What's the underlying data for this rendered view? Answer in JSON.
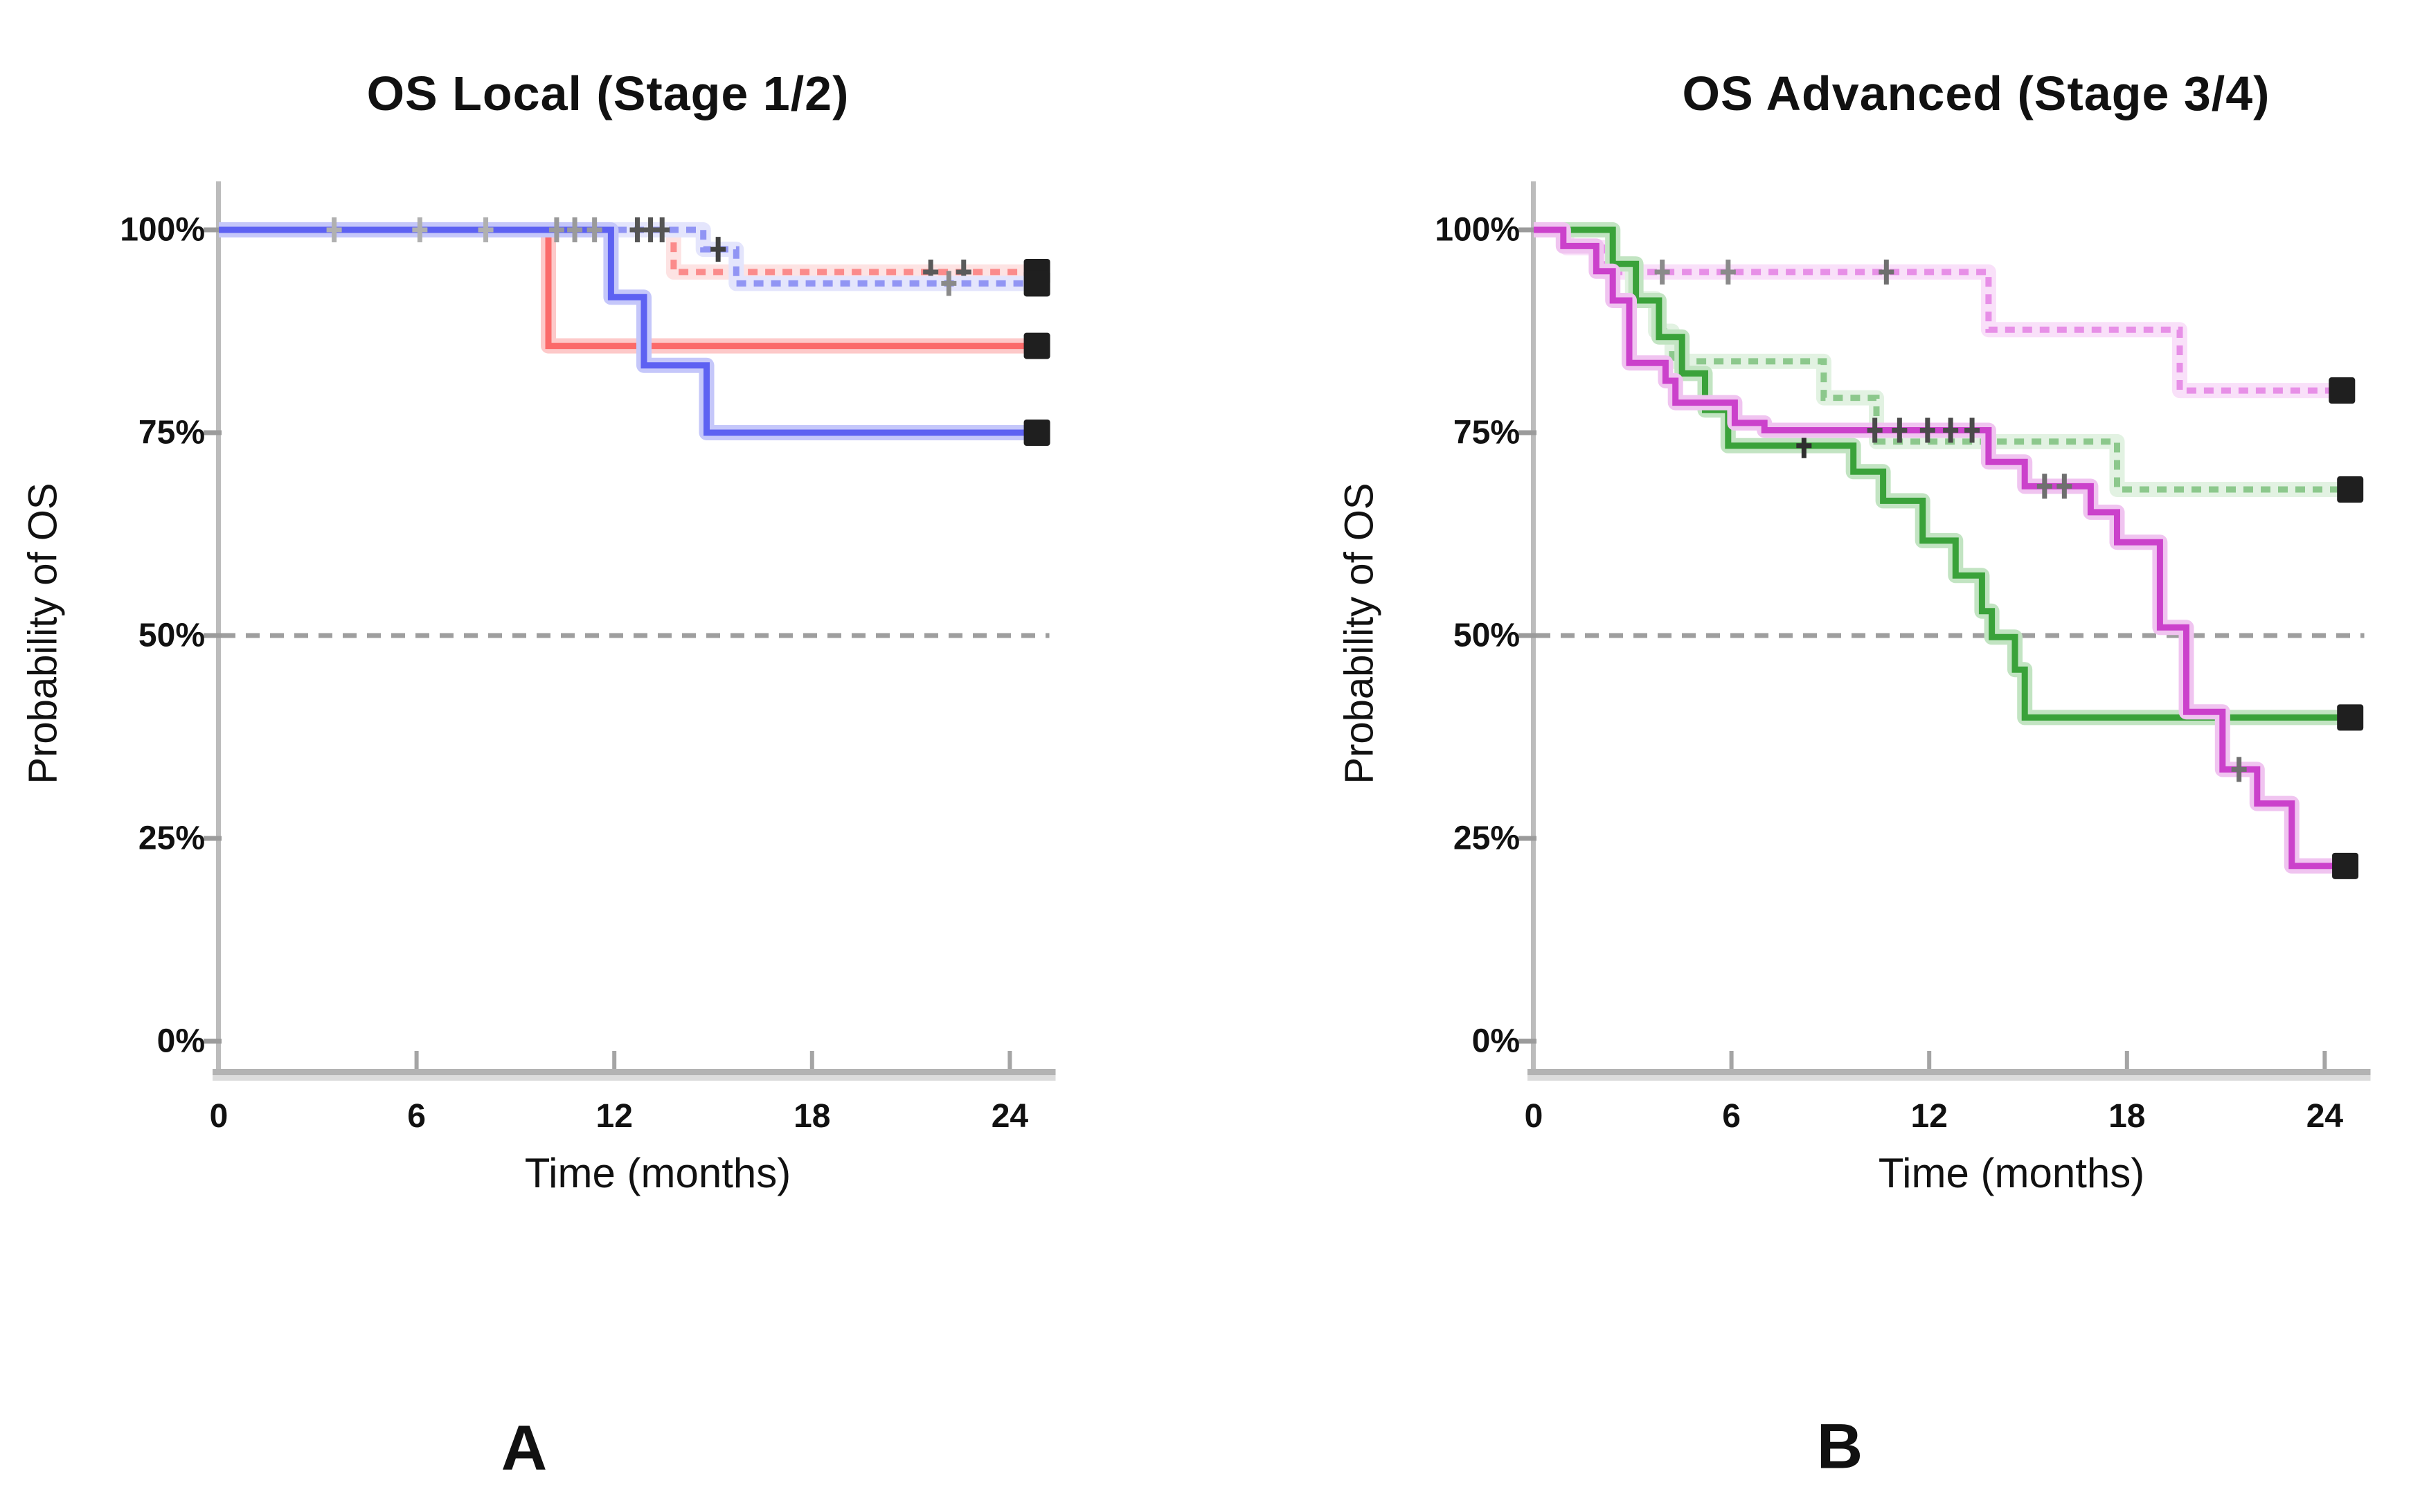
{
  "figure_type": "kaplan-meier-survival-figure",
  "chart_data": [
    {
      "type": "line",
      "subtype": "kaplan-meier-step",
      "panel_label": "A",
      "title": "OS Local (Stage 1/2)",
      "xlabel": "Time (months)",
      "ylabel": "Probability of OS",
      "x_ticks": [
        0,
        6,
        12,
        18,
        24
      ],
      "y_tick_labels": [
        "100%",
        "75%",
        "50%",
        "25%",
        "0%"
      ],
      "y_tick_pcts": [
        100,
        75,
        50,
        25,
        0
      ],
      "xlim_months": [
        0,
        25.2
      ],
      "ylim_pct": [
        0,
        100
      ],
      "reference_line": {
        "pct": 50,
        "color": "#9e9e9e",
        "style": "dashed"
      },
      "axis_color": "#bcbcbc",
      "grid": false,
      "legend": "none",
      "series": [
        {
          "name": "red dashed",
          "style": "dashed",
          "color": "#fb8b8b",
          "halo": "#fde3e3",
          "steps": [
            [
              0,
              100
            ],
            [
              13.8,
              100
            ],
            [
              13.8,
              94.8
            ],
            [
              24.55,
              94.8
            ]
          ],
          "censors": [
            [
              21.6,
              94.8,
              "#5a5a5a"
            ],
            [
              22.6,
              94.8,
              "#5a5a5a"
            ]
          ],
          "end_marker": [
            24.55,
            94.8
          ]
        },
        {
          "name": "blue dashed",
          "style": "dashed",
          "color": "#9195f4",
          "halo": "#e4e5fc",
          "steps": [
            [
              0,
              100
            ],
            [
              14.7,
              100
            ],
            [
              14.7,
              97.6
            ],
            [
              15.7,
              97.6
            ],
            [
              15.7,
              93.4
            ],
            [
              24.55,
              93.4
            ]
          ],
          "censors": [
            [
              15.15,
              97.6,
              "#3f3f3f"
            ],
            [
              22.15,
              93.4,
              "#8a8a8a"
            ]
          ],
          "end_marker": [
            24.55,
            93.4
          ]
        },
        {
          "name": "red solid",
          "style": "solid",
          "color": "#fb6a6a",
          "halo": "#fdc9c9",
          "steps": [
            [
              0,
              100
            ],
            [
              10,
              100
            ],
            [
              10,
              85.7
            ],
            [
              24.55,
              85.7
            ]
          ],
          "censors": [],
          "end_marker": [
            24.55,
            85.7
          ]
        },
        {
          "name": "blue solid",
          "style": "solid",
          "color": "#5d61f2",
          "halo": "#c5c7fa",
          "steps": [
            [
              0,
              100
            ],
            [
              11.9,
              100
            ],
            [
              11.9,
              91.7
            ],
            [
              12.9,
              91.7
            ],
            [
              12.9,
              83.3
            ],
            [
              14.8,
              83.3
            ],
            [
              14.8,
              75
            ],
            [
              24.55,
              75
            ]
          ],
          "censors": [],
          "end_marker": [
            24.55,
            75
          ]
        }
      ],
      "censor_marks_on_100pct_line": [
        [
          3.5,
          100,
          "#b0b0b0"
        ],
        [
          6.1,
          100,
          "#b0b0b0"
        ],
        [
          8.1,
          100,
          "#b0b0b0"
        ],
        [
          10.25,
          100,
          "#9a9a9a"
        ],
        [
          10.8,
          100,
          "#9a9a9a"
        ],
        [
          11.4,
          100,
          "#9a9a9a"
        ],
        [
          12.7,
          100,
          "#555555"
        ],
        [
          13.1,
          100,
          "#555555"
        ],
        [
          13.45,
          100,
          "#555555"
        ]
      ]
    },
    {
      "type": "line",
      "subtype": "kaplan-meier-step",
      "panel_label": "B",
      "title": "OS Advanced (Stage 3/4)",
      "xlabel": "Time (months)",
      "ylabel": "Probability of OS",
      "x_ticks": [
        0,
        6,
        12,
        18,
        24
      ],
      "y_tick_labels": [
        "100%",
        "75%",
        "50%",
        "25%",
        "0%"
      ],
      "y_tick_pcts": [
        100,
        75,
        50,
        25,
        0
      ],
      "xlim_months": [
        0,
        25.2
      ],
      "ylim_pct": [
        0,
        100
      ],
      "reference_line": {
        "pct": 50,
        "color": "#9e9e9e",
        "style": "dashed"
      },
      "axis_color": "#bcbcbc",
      "grid": false,
      "legend": "none",
      "series": [
        {
          "name": "magenta dashed",
          "style": "dashed",
          "color": "#e78fe7",
          "halo": "#f9e0f9",
          "steps": [
            [
              0,
              100
            ],
            [
              1.0,
              100
            ],
            [
              1.0,
              97.8
            ],
            [
              2.2,
              97.8
            ],
            [
              2.2,
              94.8
            ],
            [
              13.8,
              94.8
            ],
            [
              13.8,
              87.7
            ],
            [
              19.6,
              87.7
            ],
            [
              19.6,
              80.2
            ],
            [
              24.25,
              80.2
            ]
          ],
          "censors": [
            [
              3.9,
              94.8,
              "#8a8a8a"
            ],
            [
              5.9,
              94.8,
              "#8a8a8a"
            ],
            [
              10.7,
              94.8,
              "#6f6f6f"
            ]
          ],
          "end_marker": [
            24.25,
            80.2
          ]
        },
        {
          "name": "green dashed",
          "style": "dashed",
          "color": "#8cc88c",
          "halo": "#e2f2e2",
          "steps": [
            [
              0,
              100
            ],
            [
              2.4,
              100
            ],
            [
              2.4,
              95.8
            ],
            [
              3.0,
              95.8
            ],
            [
              3.0,
              91.5
            ],
            [
              3.7,
              91.5
            ],
            [
              3.7,
              87.5
            ],
            [
              4.2,
              87.5
            ],
            [
              4.2,
              83.8
            ],
            [
              8.8,
              83.8
            ],
            [
              8.8,
              79.3
            ],
            [
              10.4,
              79.3
            ],
            [
              10.4,
              73.9
            ],
            [
              17.7,
              73.9
            ],
            [
              17.7,
              68
            ],
            [
              24.5,
              68
            ]
          ],
          "censors": [],
          "end_marker": [
            24.5,
            68
          ]
        },
        {
          "name": "green solid",
          "style": "solid",
          "color": "#3aa23a",
          "halo": "#c2e4c2",
          "steps": [
            [
              0,
              100
            ],
            [
              2.4,
              100
            ],
            [
              2.4,
              95.8
            ],
            [
              3.1,
              95.8
            ],
            [
              3.1,
              91.3
            ],
            [
              3.8,
              91.3
            ],
            [
              3.8,
              86.8
            ],
            [
              4.5,
              86.8
            ],
            [
              4.5,
              82.3
            ],
            [
              5.2,
              82.3
            ],
            [
              5.2,
              77.8
            ],
            [
              5.9,
              77.8
            ],
            [
              5.9,
              73.4
            ],
            [
              9.7,
              73.4
            ],
            [
              9.7,
              70.2
            ],
            [
              10.6,
              70.2
            ],
            [
              10.6,
              66.6
            ],
            [
              11.8,
              66.6
            ],
            [
              11.8,
              61.7
            ],
            [
              12.8,
              61.7
            ],
            [
              12.8,
              57.4
            ],
            [
              13.6,
              57.4
            ],
            [
              13.6,
              53
            ],
            [
              13.9,
              53
            ],
            [
              13.9,
              49.8
            ],
            [
              14.6,
              49.8
            ],
            [
              14.6,
              45.8
            ],
            [
              14.9,
              45.8
            ],
            [
              14.9,
              39.9
            ],
            [
              24.5,
              39.9
            ]
          ],
          "censors": [
            [
              8.2,
              73.4,
              "#2f2f2f"
            ]
          ],
          "end_marker": [
            24.5,
            39.9
          ]
        },
        {
          "name": "magenta solid",
          "style": "solid",
          "color": "#cb41cb",
          "halo": "#f0c4f0",
          "steps": [
            [
              0,
              100
            ],
            [
              0.9,
              100
            ],
            [
              0.9,
              98
            ],
            [
              1.9,
              98
            ],
            [
              1.9,
              94.9
            ],
            [
              2.4,
              94.9
            ],
            [
              2.4,
              91.3
            ],
            [
              2.9,
              91.3
            ],
            [
              2.9,
              83.6
            ],
            [
              4.0,
              83.6
            ],
            [
              4.0,
              81.4
            ],
            [
              4.3,
              81.4
            ],
            [
              4.3,
              78.7
            ],
            [
              6.1,
              78.7
            ],
            [
              6.1,
              76.2
            ],
            [
              7.0,
              76.2
            ],
            [
              7.0,
              75.3
            ],
            [
              13.8,
              75.3
            ],
            [
              13.8,
              71.4
            ],
            [
              14.9,
              71.4
            ],
            [
              14.9,
              68.4
            ],
            [
              16.9,
              68.4
            ],
            [
              16.9,
              65.2
            ],
            [
              17.7,
              65.2
            ],
            [
              17.7,
              61.5
            ],
            [
              19.0,
              61.5
            ],
            [
              19.0,
              51.0
            ],
            [
              19.8,
              51.0
            ],
            [
              19.8,
              40.6
            ],
            [
              20.9,
              40.6
            ],
            [
              20.9,
              33.5
            ],
            [
              21.95,
              33.5
            ],
            [
              21.95,
              29.3
            ],
            [
              23.0,
              29.3
            ],
            [
              23.0,
              21.6
            ],
            [
              24.35,
              21.6
            ]
          ],
          "censors": [
            [
              10.35,
              75.3,
              "#4a4a4a"
            ],
            [
              11.1,
              75.3,
              "#4a4a4a"
            ],
            [
              11.95,
              75.3,
              "#4a4a4a"
            ],
            [
              12.65,
              75.3,
              "#4a4a4a"
            ],
            [
              13.3,
              75.3,
              "#4a4a4a"
            ],
            [
              15.5,
              68.4,
              "#6f6f6f"
            ],
            [
              16.1,
              68.4,
              "#6f6f6f"
            ],
            [
              21.4,
              33.5,
              "#6f6f6f"
            ]
          ],
          "end_marker": [
            24.35,
            21.6
          ]
        }
      ],
      "censor_marks_on_100pct_line": []
    }
  ],
  "end_marker_color": "#1f1f1f"
}
